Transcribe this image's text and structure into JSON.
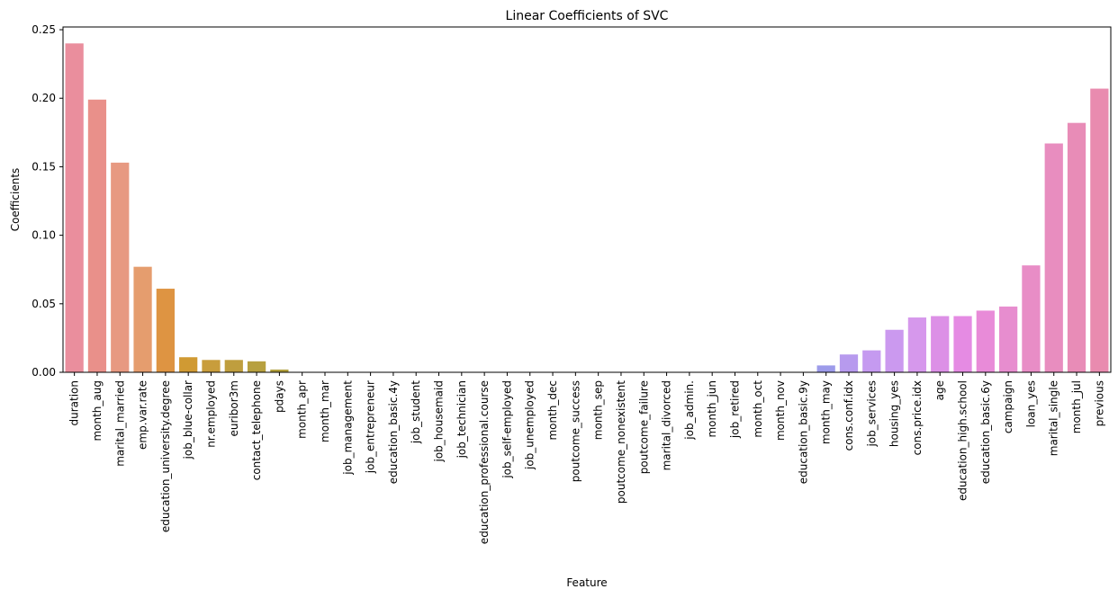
{
  "chart_data": {
    "type": "bar",
    "title": "Linear Coefficients of SVC",
    "xlabel": "Feature",
    "ylabel": "Coefficients",
    "ylim": [
      0,
      0.252
    ],
    "yticks": [
      "0.00",
      "0.05",
      "0.10",
      "0.15",
      "0.20",
      "0.25"
    ],
    "ytick_values": [
      0,
      0.05,
      0.1,
      0.15,
      0.2,
      0.25
    ],
    "grid": false,
    "categories": [
      "duration",
      "month_aug",
      "marital_married",
      "emp.var.rate",
      "education_university.degree",
      "job_blue-collar",
      "nr.employed",
      "euribor3m",
      "contact_telephone",
      "pdays",
      "month_apr",
      "month_mar",
      "job_management",
      "job_entrepreneur",
      "education_basic.4y",
      "job_student",
      "job_housemaid",
      "job_technician",
      "education_professional.course",
      "job_self-employed",
      "job_unemployed",
      "month_dec",
      "poutcome_success",
      "month_sep",
      "poutcome_nonexistent",
      "poutcome_failure",
      "marital_divorced",
      "job_admin.",
      "month_jun",
      "job_retired",
      "month_oct",
      "month_nov",
      "education_basic.9y",
      "month_may",
      "cons.conf.idx",
      "job_services",
      "housing_yes",
      "cons.price.idx",
      "age",
      "education_high.school",
      "education_basic.6y",
      "campaign",
      "loan_yes",
      "marital_single",
      "month_jul",
      "previous"
    ],
    "values": [
      0.24,
      0.199,
      0.153,
      0.077,
      0.061,
      0.011,
      0.009,
      0.009,
      0.008,
      0.002,
      0.0,
      0.0,
      0.0,
      0.0,
      0.0,
      0.0,
      0.0,
      0.0,
      0.0,
      0.0,
      0.0,
      0.0,
      0.0,
      0.0,
      0.0,
      0.0,
      0.0,
      0.0,
      0.0,
      0.0,
      0.0,
      0.0,
      0.0,
      0.005,
      0.013,
      0.016,
      0.031,
      0.04,
      0.041,
      0.041,
      0.045,
      0.048,
      0.078,
      0.167,
      0.182,
      0.207
    ],
    "colors": [
      "#ea8e9d",
      "#e9908a",
      "#e79981",
      "#e59d6e",
      "#de9442",
      "#d09a33",
      "#c89d3c",
      "#bf9e3e",
      "#b7a03f",
      "#b09e3c",
      "#a9a23b",
      "#a0a43b",
      "#97a63b",
      "#8ea83b",
      "#84aa3b",
      "#79ab3d",
      "#6dad41",
      "#5fae48",
      "#4fb04f",
      "#43b059",
      "#3aaf66",
      "#38ae72",
      "#37ad7d",
      "#36ac87",
      "#36ab90",
      "#37aa99",
      "#38a9a2",
      "#39a8ab",
      "#3ba6b4",
      "#3da5be",
      "#41a3c8",
      "#4ba1d3",
      "#6c9ee0",
      "#9d9bea",
      "#b79aee",
      "#c59af0",
      "#cb99ef",
      "#d698ec",
      "#dc90e6",
      "#e58be3",
      "#e88bd8",
      "#e78dcf",
      "#e88dc6",
      "#e88dbf",
      "#e88cb7",
      "#e98baf"
    ]
  }
}
